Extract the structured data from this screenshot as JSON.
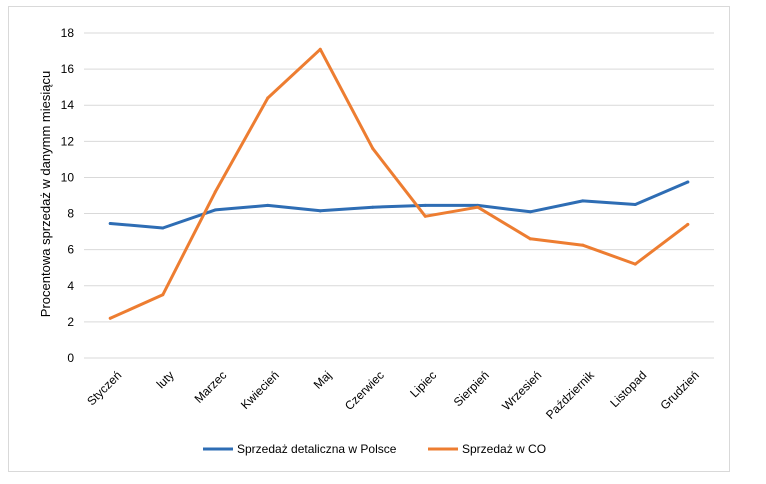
{
  "chart_data": {
    "type": "line",
    "title": "",
    "xlabel": "",
    "ylabel": "Procentowa sprzedaż w danymm miesiącu",
    "ylim": [
      0,
      18
    ],
    "yticks": [
      "0",
      "2",
      "4",
      "6",
      "8",
      "10",
      "12",
      "14",
      "16",
      "18"
    ],
    "grid": true,
    "legend_position": "bottom",
    "categories": [
      "Styczeń",
      "luty",
      "Marzec",
      "Kwiecień",
      "Maj",
      "Czerwiec",
      "Lipiec",
      "Sierpień",
      "Wrzesień",
      "Październik",
      "Listopad",
      "Grudzień"
    ],
    "series": [
      {
        "name": "Sprzedaż detaliczna w Polsce",
        "color": "#2e6db4",
        "values": [
          7.45,
          7.2,
          8.2,
          8.45,
          8.15,
          8.35,
          8.45,
          8.45,
          8.1,
          8.7,
          8.5,
          9.75
        ]
      },
      {
        "name": "Sprzedaż w CO",
        "color": "#ed7d31",
        "values": [
          2.2,
          3.5,
          9.2,
          14.4,
          17.1,
          11.6,
          7.85,
          8.35,
          6.6,
          6.25,
          5.2,
          7.4
        ]
      }
    ]
  }
}
